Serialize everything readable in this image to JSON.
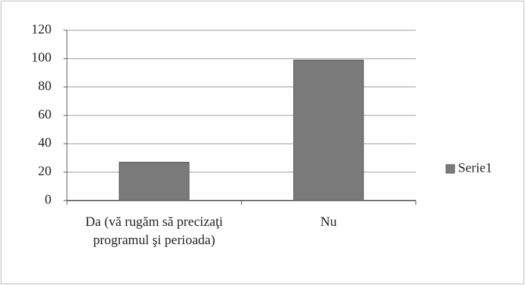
{
  "chart_data": {
    "type": "bar",
    "categories": [
      "Da (vă rugăm să precizaţi programul şi perioada)",
      "Nu"
    ],
    "series": [
      {
        "name": "Serie1",
        "color": "#7a7a7a",
        "values": [
          27,
          99
        ]
      }
    ],
    "ylim": [
      0,
      120
    ],
    "yticks": [
      0,
      20,
      40,
      60,
      80,
      100,
      120
    ],
    "grid": true,
    "legend": "right"
  }
}
